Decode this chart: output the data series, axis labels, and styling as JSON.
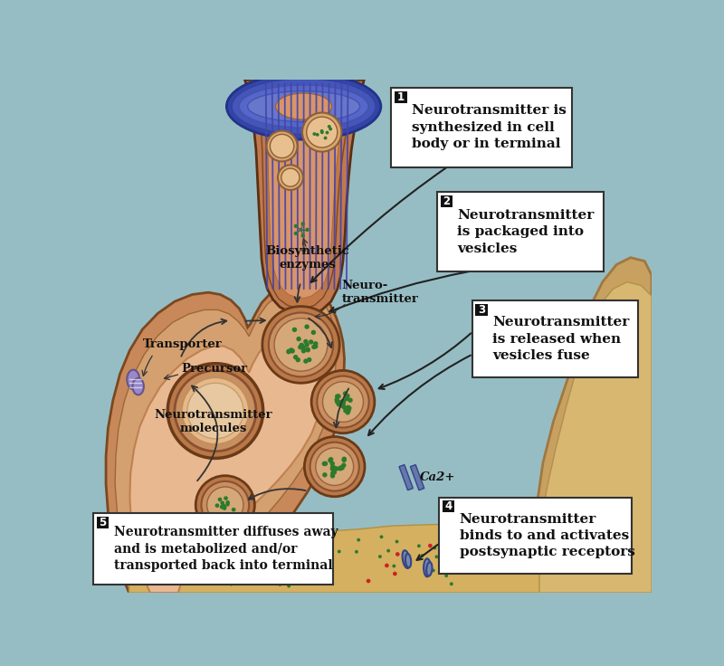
{
  "bg_color": "#97bdc4",
  "terminal_outer": "#c8885a",
  "terminal_inner": "#e8b890",
  "terminal_mid": "#d4a070",
  "axon_outer": "#c07850",
  "axon_inner": "#d49070",
  "cell_blue_outer": "#4455aa",
  "cell_blue_inner": "#6677bb",
  "cell_tan": "#d4a870",
  "postsynaptic_fill": "#c8a060",
  "postsynaptic_inner": "#d8b878",
  "vesicle_outer": "#b87848",
  "vesicle_mid": "#c89060",
  "vesicle_inner": "#d4a878",
  "large_vesicle_fill": "#e8c090",
  "dot_color": "#2d7a2d",
  "axon_stripe": "#4444aa",
  "box_fill": "#ffffff",
  "box_edge": "#333333",
  "num_box_fill": "#111111",
  "num_text_color": "#ffffff",
  "arrow_color": "#111111",
  "label_color": "#111111",
  "transporter_fill": "#9988cc",
  "transporter_edge": "#665588",
  "ca_channel": "#6677aa",
  "label1": "Neurotransmitter is\nsynthesized in cell\nbody or in terminal",
  "label2": "Neurotransmitter\nis packaged into\nvesicles",
  "label3": "Neurotransmitter\nis released when\nvesicles fuse",
  "label4": "Neurotransmitter\nbinds to and activates\npostsynaptic receptors",
  "label5": "Neurotransmitter diffuses away\nand is metabolized and/or\ntransported back into terminal",
  "lbl_transporter": "Transporter",
  "lbl_biosynthetic": "Biosynthetic\nenzymes",
  "lbl_neurotransmitter": "Neuro-\ntransmitter",
  "lbl_precursor": "Precursor",
  "lbl_nt_molecules": "Neurotransmitter\nmolecules",
  "lbl_ca": "Ca2+"
}
